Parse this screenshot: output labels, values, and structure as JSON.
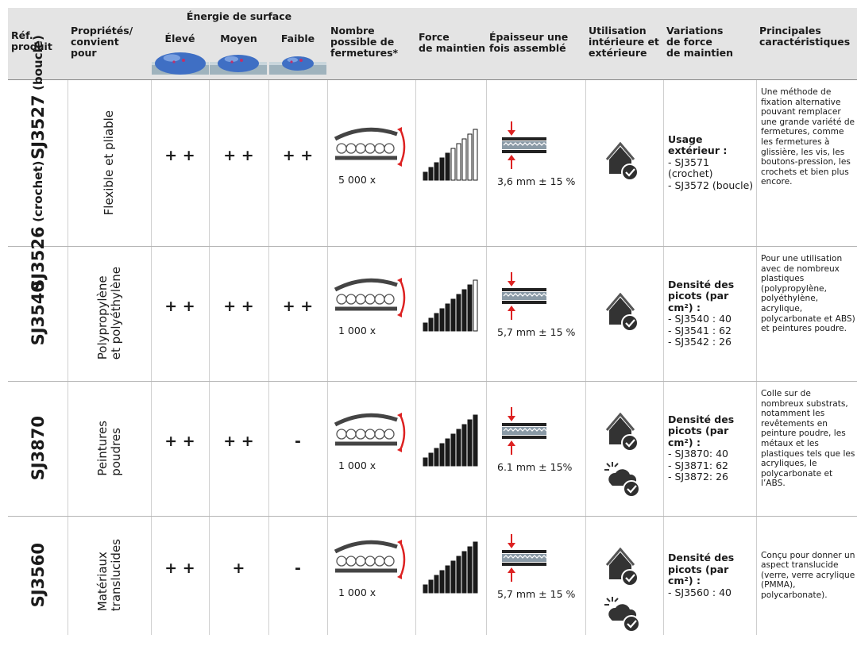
{
  "header": {
    "ref": [
      "Réf.",
      "produit"
    ],
    "properties": [
      "Propriétés/",
      "convient",
      "pour"
    ],
    "surface_energy": "Énergie de surface",
    "levels": [
      "Élevé",
      "Moyen",
      "Faible"
    ],
    "closures": [
      "Nombre",
      "possible de",
      "fermetures*"
    ],
    "holding": [
      "Force",
      "de maintien"
    ],
    "thickness": [
      "Épaisseur une",
      "fois assemblé"
    ],
    "usage": [
      "Utilisation",
      "intérieure et",
      "extérieure"
    ],
    "variations": [
      "Variations",
      "de force",
      "de maintien"
    ],
    "features": [
      "Principales",
      "caractéristiques"
    ]
  },
  "rows": [
    {
      "refs": [
        {
          "code": "SJ3526",
          "note": "(crochet)"
        },
        {
          "code": "SJ3527",
          "note": "(boucle)"
        }
      ],
      "properties": [
        "Flexible et pliable"
      ],
      "ratings": [
        "+ +",
        "+ +",
        "+ +"
      ],
      "closures": "5 000 x",
      "thickness": "3,6 mm ± 15 %",
      "variations": {
        "title": "Usage extérieur :",
        "lines": [
          "- SJ3571 (crochet)",
          "- SJ3572 (boucle)"
        ]
      },
      "features": "Une méthode de fixation alternative pouvant remplacer une grande variété de fermetures, comme les fermetures à glissière, les vis, les boutons-pression, les crochets et bien plus encore."
    },
    {
      "refs": [
        {
          "code": "SJ3540"
        }
      ],
      "properties": [
        "Polypropylène",
        "et polyéthylène"
      ],
      "ratings": [
        "+ +",
        "+ +",
        "+ +"
      ],
      "closures": "1 000 x",
      "thickness": "5,7 mm ± 15 %",
      "variations": {
        "title": "Densité des picots (par cm²) :",
        "lines": [
          "- SJ3540 : 40",
          "- SJ3541 : 62",
          "- SJ3542 : 26"
        ]
      },
      "features": "Pour une utilisation avec de nombreux plastiques (polypropylène, polyéthylène, acrylique, polycarbonate et ABS) et peintures poudre."
    },
    {
      "refs": [
        {
          "code": "SJ3870"
        }
      ],
      "properties": [
        "Peintures",
        "poudres"
      ],
      "ratings": [
        "+ +",
        "+ +",
        "-"
      ],
      "closures": "1 000 x",
      "thickness": "6.1 mm ± 15%",
      "variations": {
        "title": "Densité des picots (par cm²) :",
        "lines": [
          "- SJ3870: 40",
          "- SJ3871: 62",
          "- SJ3872: 26"
        ]
      },
      "features": "Colle sur de nombreux substrats, notamment les revêtements en peinture poudre, les métaux et les plastiques tels que les acryliques, le polycarbonate et l’ABS."
    },
    {
      "refs": [
        {
          "code": "SJ3560"
        }
      ],
      "properties": [
        "Matériaux",
        "translucides"
      ],
      "ratings": [
        "+ +",
        "+",
        "-"
      ],
      "closures": "1 000 x",
      "thickness": "5,7 mm ± 15 %",
      "variations": {
        "title": "Densité des picots (par cm²) :",
        "lines": [
          "- SJ3560 : 40"
        ]
      },
      "features": "Conçu pour donner un aspect translucide (verre, verre acrylique (PMMA), polycarbonate)."
    }
  ]
}
